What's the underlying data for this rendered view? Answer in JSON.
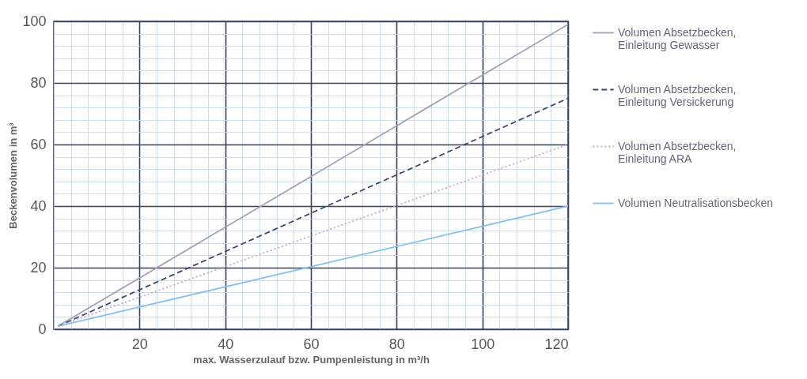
{
  "chart_data": {
    "type": "line",
    "xlabel": "max. Wasserzulauf bzw. Pumpenleistung in m³/h",
    "ylabel": "Beckenvolumen in m³",
    "x": [
      1,
      120
    ],
    "series": [
      {
        "name": "Volumen Absetzbecken, Einleitung Gewasser",
        "color": "#a3a3b8",
        "line_style": "solid",
        "values": [
          1,
          99
        ]
      },
      {
        "name": "Volumen Absetzbecken, Einleitung Versickerung",
        "color": "#3d4a6e",
        "line_style": "dashed",
        "values": [
          1,
          75
        ]
      },
      {
        "name": "Volumen Absetzbecken, Einleitung ARA",
        "color": "#c9a8c8",
        "line_style": "dotted",
        "values": [
          1,
          60
        ]
      },
      {
        "name": "Volumen Neutralisationsbecken",
        "color": "#86c2f0",
        "line_style": "solid",
        "values": [
          1,
          40
        ]
      }
    ],
    "xlim": [
      0,
      120
    ],
    "ylim": [
      0,
      100
    ],
    "xticks": [
      {
        "value": 0,
        "label": null
      },
      {
        "value": 4,
        "label": null
      },
      {
        "value": 8,
        "label": null
      },
      {
        "value": 12,
        "label": null
      },
      {
        "value": 16,
        "label": null
      },
      20,
      {
        "value": 24,
        "label": null
      },
      {
        "value": 28,
        "label": null
      },
      {
        "value": 32,
        "label": null
      },
      {
        "value": 36,
        "label": null
      },
      40,
      {
        "value": 44,
        "label": null
      },
      {
        "value": 48,
        "label": null
      },
      {
        "value": 52,
        "label": null
      },
      {
        "value": 56,
        "label": null
      },
      60,
      {
        "value": 64,
        "label": null
      },
      {
        "value": 68,
        "label": null
      },
      {
        "value": 72,
        "label": null
      },
      {
        "value": 76,
        "label": null
      },
      80,
      {
        "value": 84,
        "label": null
      },
      {
        "value": 88,
        "label": null
      },
      {
        "value": 92,
        "label": null
      },
      {
        "value": 96,
        "label": null
      },
      100,
      {
        "value": 104,
        "label": null
      },
      {
        "value": 108,
        "label": null
      },
      {
        "value": 112,
        "label": null
      },
      {
        "value": 116,
        "label": null
      },
      120
    ],
    "yticks": [
      0,
      {
        "value": 4,
        "label": null
      },
      {
        "value": 8,
        "label": null
      },
      {
        "value": 12,
        "label": null
      },
      {
        "value": 16,
        "label": null
      },
      20,
      {
        "value": 24,
        "label": null
      },
      {
        "value": 28,
        "label": null
      },
      {
        "value": 32,
        "label": null
      },
      {
        "value": 36,
        "label": null
      },
      40,
      {
        "value": 44,
        "label": null
      },
      {
        "value": 48,
        "label": null
      },
      {
        "value": 52,
        "label": null
      },
      {
        "value": 56,
        "label": null
      },
      60,
      {
        "value": 64,
        "label": null
      },
      {
        "value": 68,
        "label": null
      },
      {
        "value": 72,
        "label": null
      },
      {
        "value": 76,
        "label": null
      },
      80,
      {
        "value": 84,
        "label": null
      },
      {
        "value": 88,
        "label": null
      },
      {
        "value": 92,
        "label": null
      },
      {
        "value": 96,
        "label": null
      },
      100
    ],
    "grid": true,
    "legend": "right",
    "marker": "none"
  }
}
